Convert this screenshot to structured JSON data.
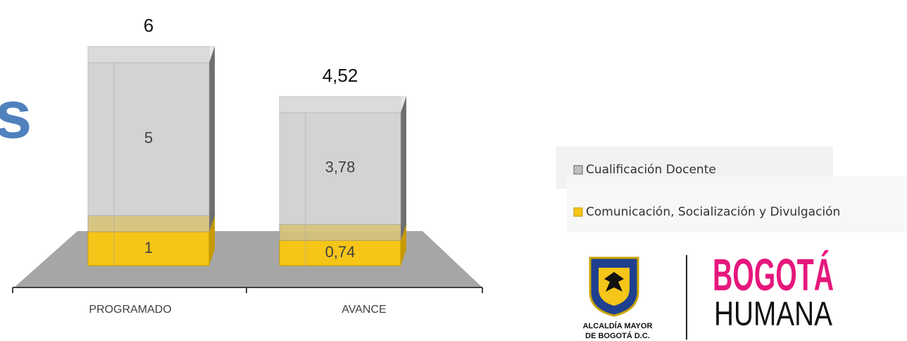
{
  "title": "s",
  "chart_data": {
    "type": "bar3d_stacked",
    "categories": [
      "PROGRAMADO",
      "AVANCE"
    ],
    "series": [
      {
        "name": "Comunicación, Socialización y Divulgación",
        "color": "#f5c518",
        "values": [
          1,
          0.74
        ],
        "value_labels": [
          "1",
          "0,74"
        ]
      },
      {
        "name": "Cualificación Docente",
        "color": "#bfbfbf",
        "values": [
          5,
          3.78
        ],
        "value_labels": [
          "5",
          "3,78"
        ]
      }
    ],
    "totals": {
      "values": [
        6,
        4.52
      ],
      "value_labels": [
        "6",
        "4,52"
      ]
    }
  },
  "logo": {
    "lines": [
      "ALCALDÍA MAYOR",
      "DE BOGOTÁ D.C."
    ],
    "brand": [
      "BOGOTÁ",
      "HUMANA"
    ]
  }
}
